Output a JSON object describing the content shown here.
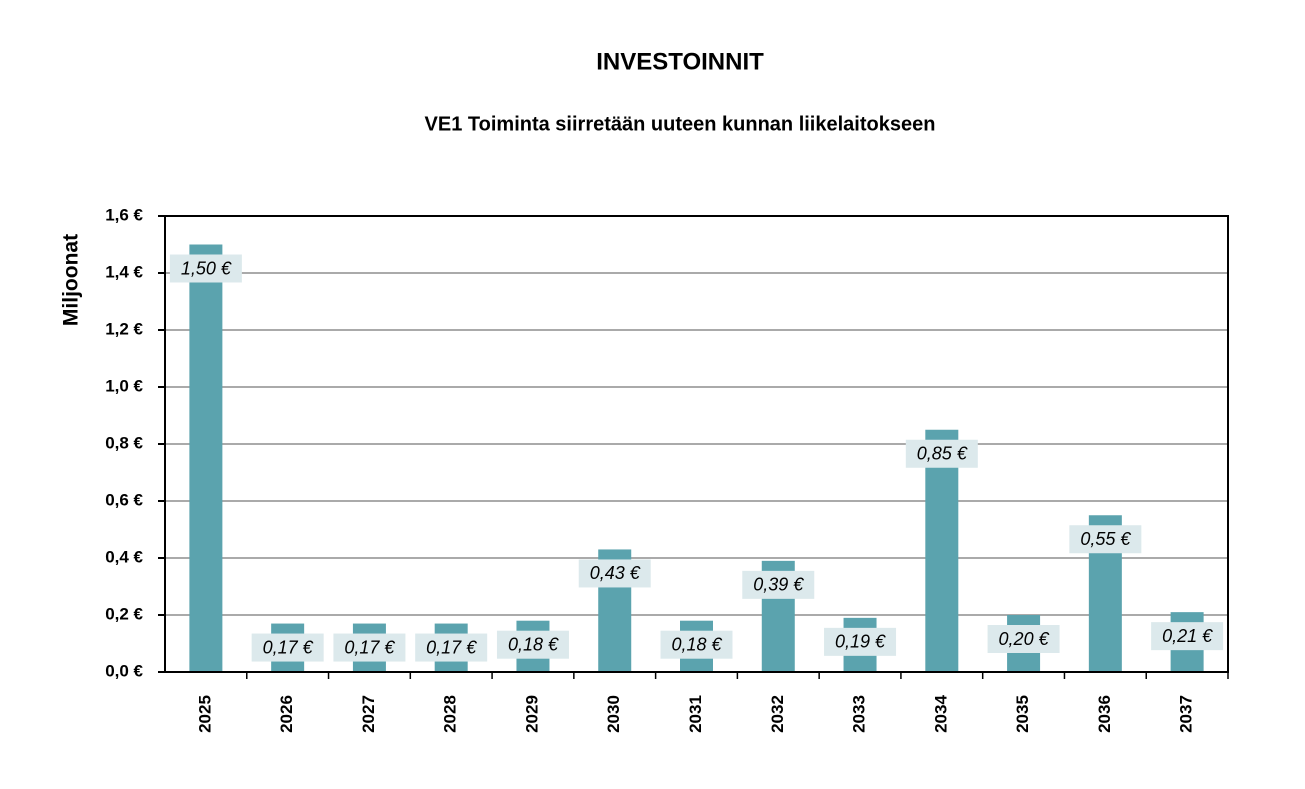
{
  "chart_data": {
    "type": "bar",
    "title": "INVESTOINNIT",
    "subtitle": "VE1 Toiminta siirretään uuteen kunnan liikelaitokseen",
    "y_label": "Miljoonat",
    "categories": [
      "2025",
      "2026",
      "2027",
      "2028",
      "2029",
      "2030",
      "2031",
      "2032",
      "2033",
      "2034",
      "2035",
      "2036",
      "2037"
    ],
    "values": [
      1.5,
      0.17,
      0.17,
      0.17,
      0.18,
      0.43,
      0.18,
      0.39,
      0.19,
      0.85,
      0.2,
      0.55,
      0.21
    ],
    "value_labels": [
      "1,50 €",
      "0,17 €",
      "0,17 €",
      "0,17 €",
      "0,18 €",
      "0,43 €",
      "0,18 €",
      "0,39 €",
      "0,19 €",
      "0,85 €",
      "0,20 €",
      "0,55 €",
      "0,21 €"
    ],
    "color": "#5ba3ae",
    "ylim": [
      0,
      1.6
    ],
    "yticks": [
      {
        "value": 0,
        "label": "0,0 €"
      },
      {
        "value": 0.2,
        "label": "0,2 €"
      },
      {
        "value": 0.4,
        "label": "0,4 €"
      },
      {
        "value": 0.6,
        "label": "0,6 €"
      },
      {
        "value": 0.8,
        "label": "0,8 €"
      },
      {
        "value": 1.0,
        "label": "1,0 €"
      },
      {
        "value": 1.2,
        "label": "1,2 €"
      },
      {
        "value": 1.4,
        "label": "1,4 €"
      },
      {
        "value": 1.6,
        "label": "1,6 €"
      }
    ],
    "grid": true
  }
}
